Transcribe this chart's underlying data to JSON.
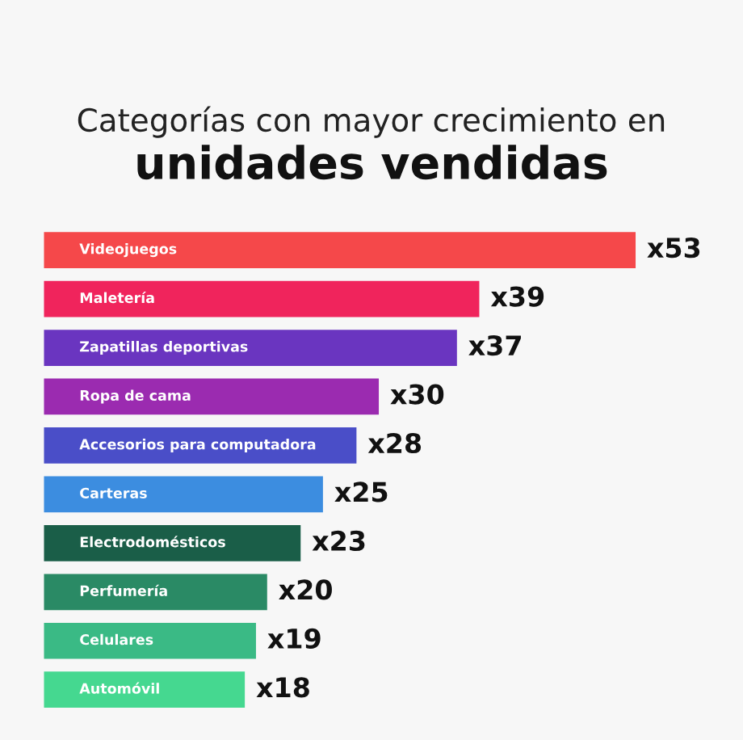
{
  "chart_data": {
    "type": "bar",
    "orientation": "horizontal",
    "title": "Categorías con mayor crecimiento en",
    "subtitle": "unidades vendidas",
    "categories": [
      "Videojuegos",
      "Maletería",
      "Zapatillas deportivas",
      "Ropa de cama",
      "Accesorios para computadora",
      "Carteras",
      "Electrodomésticos",
      "Perfumería",
      "Celulares",
      "Automóvil"
    ],
    "values": [
      53,
      39,
      37,
      30,
      28,
      25,
      23,
      20,
      19,
      18
    ],
    "colors": [
      "#f5484a",
      "#f0245c",
      "#6a35c0",
      "#9b2bb0",
      "#4a4ec8",
      "#3c8de0",
      "#1a5e48",
      "#2a8a65",
      "#3aba85",
      "#45d890"
    ],
    "value_labels": [
      "x53",
      "x39",
      "x37",
      "x30",
      "x28",
      "x25",
      "x23",
      "x20",
      "x19",
      "x18"
    ],
    "legend": false
  }
}
